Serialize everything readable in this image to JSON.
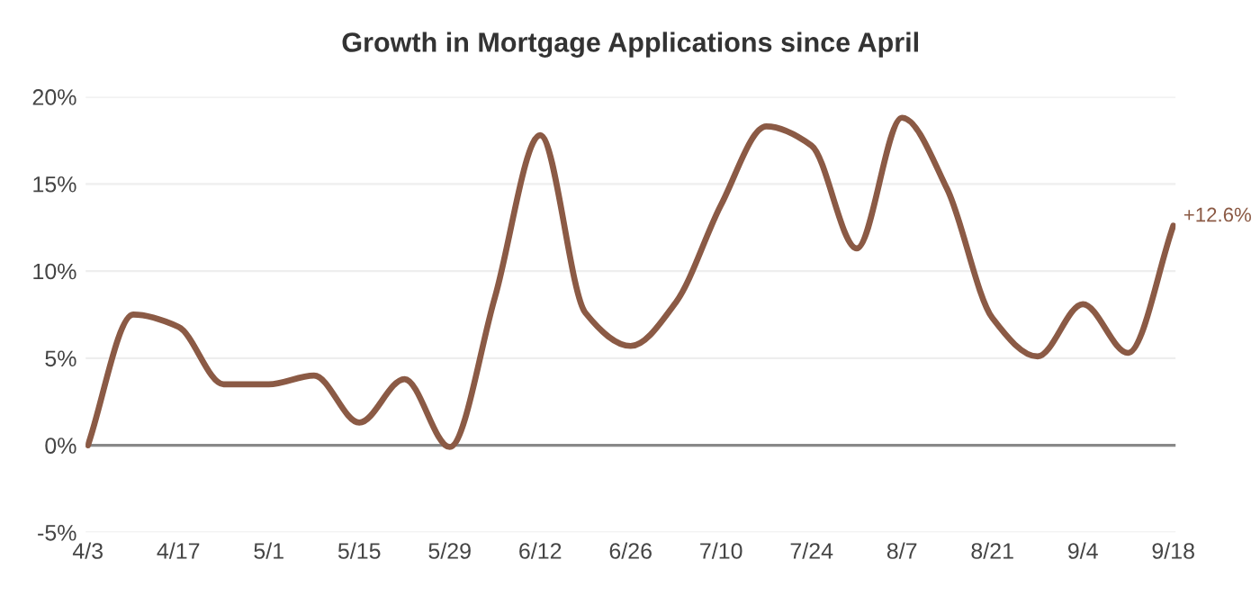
{
  "chart_data": {
    "type": "line",
    "title": "Growth in Mortgage Applications since April",
    "categories": [
      "4/3",
      null,
      "4/17",
      null,
      "5/1",
      null,
      "5/15",
      null,
      "5/29",
      null,
      "6/12",
      null,
      "6/26",
      null,
      "7/10",
      null,
      "7/24",
      null,
      "8/7",
      null,
      "8/21",
      null,
      "9/4",
      null,
      "9/18"
    ],
    "series": [
      {
        "color": "#8b5a45",
        "values": [
          0,
          7.5,
          6.8,
          3.5,
          3.5,
          4.0,
          1.3,
          3.8,
          -0.1,
          8.5,
          17.8,
          7.6,
          5.7,
          8.2,
          13.8,
          18.3,
          17.2,
          11.3,
          18.8,
          14.7,
          7.3,
          5.1,
          8.1,
          5.3,
          12.6
        ]
      }
    ],
    "ylim": [
      -5,
      20
    ],
    "yticks": [
      {
        "value": -5,
        "label": "-5%"
      },
      {
        "value": 0,
        "label": "0%"
      },
      {
        "value": 5,
        "label": "5%"
      },
      {
        "value": 10,
        "label": "10%"
      },
      {
        "value": 15,
        "label": "15%"
      },
      {
        "value": 20,
        "label": "20%"
      }
    ],
    "grid": "y",
    "legend": false,
    "marker": "none",
    "line_style": "solid",
    "ref_lines": [
      {
        "axis": "y",
        "value": 0,
        "color": "#888888",
        "line_style": "solid"
      }
    ],
    "annotations": [
      {
        "text": "+12.6%",
        "x": "9/18",
        "y": 12.6
      }
    ]
  }
}
